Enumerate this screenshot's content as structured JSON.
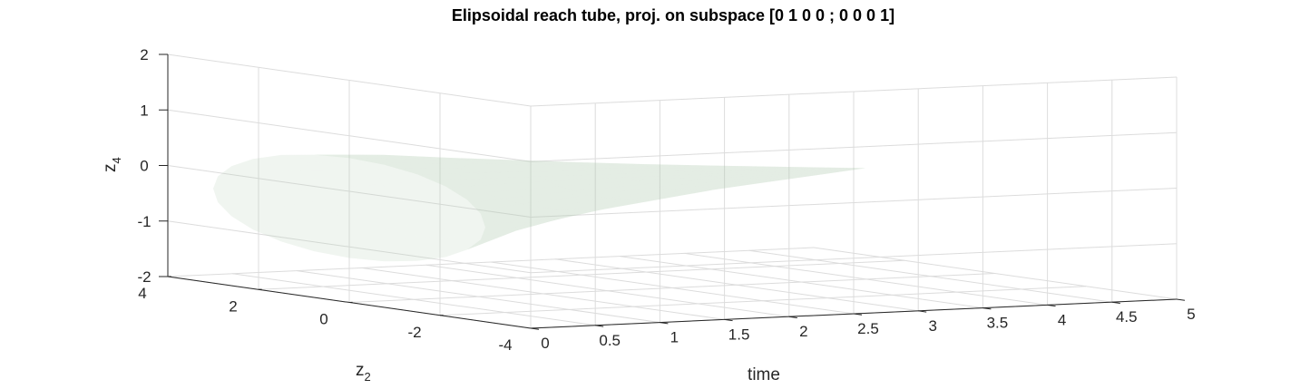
{
  "chart_data": {
    "type": "surface",
    "title": "Elipsoidal reach tube, proj. on subspace [0 1 0 0 ; 0 0 0 1]",
    "xlabel": "time",
    "ylabel_main": "z",
    "ylabel_sub": "2",
    "zlabel_main": "z",
    "zlabel_sub": "4",
    "xlim": [
      0,
      5
    ],
    "ylim": [
      -4,
      4
    ],
    "zlim": [
      -2,
      2
    ],
    "x_ticks": [
      "0",
      "0.5",
      "1",
      "1.5",
      "2",
      "2.5",
      "3",
      "3.5",
      "4",
      "4.5",
      "5"
    ],
    "x_tick_values": [
      0,
      0.5,
      1,
      1.5,
      2,
      2.5,
      3,
      3.5,
      4,
      4.5,
      5
    ],
    "y_ticks": [
      "4",
      "2",
      "0",
      "-2",
      "-4"
    ],
    "y_tick_values": [
      4,
      2,
      0,
      -2,
      -4
    ],
    "z_ticks": [
      "2",
      "1",
      "0",
      "-1",
      "-2"
    ],
    "z_tick_values": [
      2,
      1,
      0,
      -1,
      -2
    ],
    "grid": true,
    "surface_color": "#b4ceb4",
    "tube": {
      "time": [
        0,
        0.5,
        1,
        1.5,
        2,
        2.5,
        3,
        3.5,
        4
      ],
      "z2_min": [
        -3.0,
        -2.6,
        -2.2,
        -1.85,
        -1.5,
        -1.1,
        -0.75,
        -0.38,
        0
      ],
      "z2_max": [
        3.0,
        2.6,
        2.2,
        1.85,
        1.5,
        1.1,
        0.75,
        0.38,
        0
      ],
      "z4_min": [
        -1.2,
        -0.85,
        -0.62,
        -0.45,
        -0.33,
        -0.22,
        -0.14,
        -0.07,
        0
      ],
      "z4_max": [
        0.6,
        0.55,
        0.45,
        0.36,
        0.27,
        0.19,
        0.12,
        0.06,
        0
      ]
    }
  }
}
